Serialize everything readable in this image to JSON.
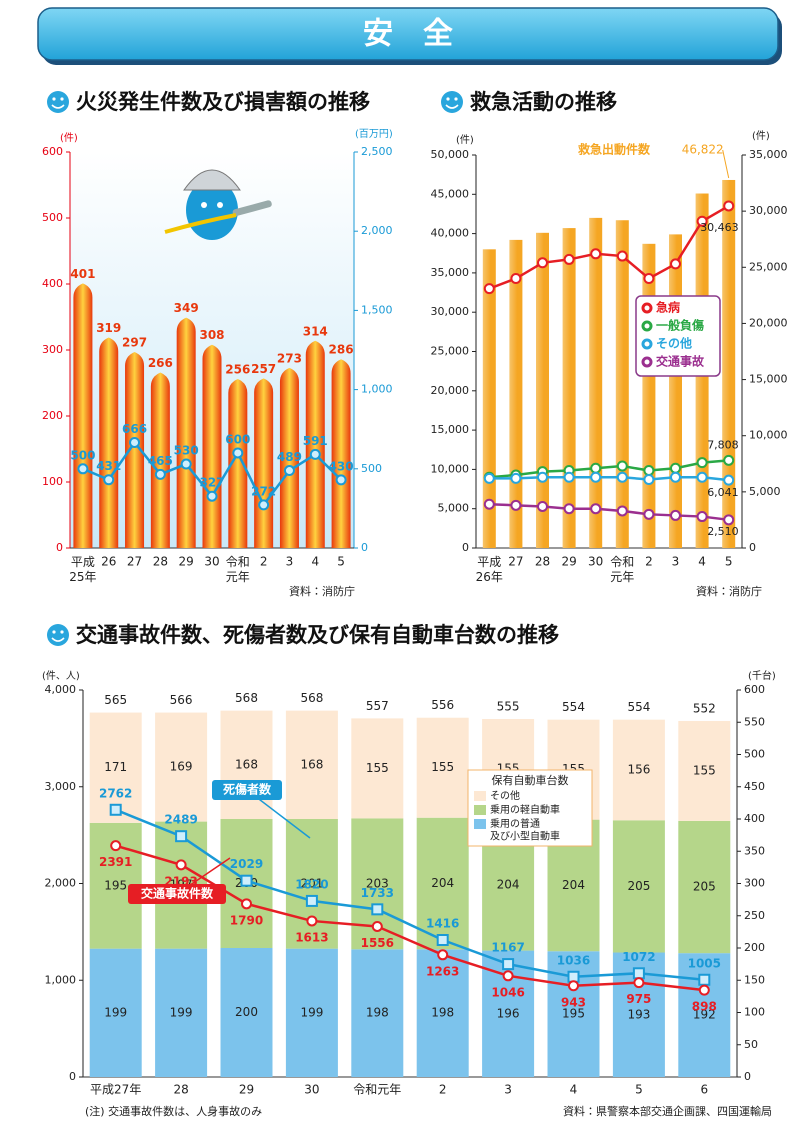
{
  "header": {
    "title": "安　全"
  },
  "chart_data": [
    {
      "type": "combo",
      "title": "火災発生件数及び損害額の推移",
      "ylabel": "(件)",
      "y2label": "(百万円)",
      "source": "資料：消防庁",
      "categories": [
        "平成\n25年",
        "26",
        "27",
        "28",
        "29",
        "30",
        "令和\n元年",
        "2",
        "3",
        "4",
        "5"
      ],
      "series": [
        {
          "type": "bar",
          "color": "#e8380d",
          "values": [
            401,
            319,
            297,
            266,
            349,
            308,
            256,
            257,
            273,
            314,
            286
          ]
        },
        {
          "type": "line",
          "axis": "y2",
          "marker": "circle",
          "color": "#1a9ad6",
          "values": [
            500,
            431,
            666,
            465,
            530,
            327,
            600,
            272,
            489,
            591,
            430
          ]
        }
      ],
      "ylim": [
        0,
        600
      ],
      "yticks": [
        0,
        100,
        200,
        300,
        400,
        500,
        600
      ],
      "y2lim": [
        0,
        2500
      ],
      "y2ticks": [
        0,
        500,
        {
          "value": 1000,
          "label": "1,000"
        },
        {
          "value": 1500,
          "label": "1,500"
        },
        {
          "value": 2000,
          "label": "2,000"
        },
        {
          "value": 2500,
          "label": "2,500"
        }
      ]
    },
    {
      "type": "combo",
      "title": "救急活動の推移",
      "ylabel": "(件)",
      "y2label": "(件)",
      "source": "資料：消防庁",
      "categories": [
        "平成\n26年",
        "27",
        "28",
        "29",
        "30",
        "令和\n元年",
        "2",
        "3",
        "4",
        "5"
      ],
      "series": [
        {
          "type": "bar",
          "name": "救急出動件数",
          "color": "#f5a623",
          "values": [
            38000,
            39200,
            40100,
            40700,
            42000,
            41700,
            38700,
            39900,
            45100,
            46822
          ],
          "value_labels": [
            null,
            null,
            null,
            null,
            null,
            null,
            null,
            null,
            null,
            "46,822"
          ]
        },
        {
          "type": "line",
          "axis": "y2",
          "marker": "circle",
          "name": "急病",
          "color": "#e61e24",
          "values": [
            23100,
            24000,
            25400,
            25700,
            26200,
            26000,
            24000,
            25300,
            29100,
            30463
          ],
          "value_labels": [
            null,
            null,
            null,
            null,
            null,
            null,
            null,
            null,
            null,
            "30,463"
          ]
        },
        {
          "type": "line",
          "axis": "y2",
          "marker": "circle",
          "name": "一般負傷",
          "color": "#2aa845",
          "values": [
            6300,
            6500,
            6800,
            6900,
            7100,
            7300,
            6900,
            7100,
            7600,
            7808
          ],
          "value_labels": [
            null,
            null,
            null,
            null,
            null,
            null,
            null,
            null,
            null,
            "7,808"
          ]
        },
        {
          "type": "line",
          "axis": "y2",
          "marker": "circle",
          "name": "その他",
          "color": "#29a6dd",
          "values": [
            6200,
            6200,
            6300,
            6300,
            6300,
            6300,
            6100,
            6300,
            6300,
            6041
          ],
          "value_labels": [
            null,
            null,
            null,
            null,
            null,
            null,
            null,
            null,
            null,
            "6,041"
          ]
        },
        {
          "type": "line",
          "axis": "y2",
          "marker": "circle",
          "name": "交通事故",
          "color": "#9b2f8f",
          "values": [
            3900,
            3800,
            3700,
            3500,
            3500,
            3300,
            3000,
            2900,
            2800,
            2510
          ],
          "value_labels": [
            null,
            null,
            null,
            null,
            null,
            null,
            null,
            null,
            null,
            "2,510"
          ]
        }
      ],
      "ylim": [
        0,
        50000
      ],
      "yticks": [
        0,
        {
          "value": 5000,
          "label": "5,000"
        },
        {
          "value": 10000,
          "label": "10,000"
        },
        {
          "value": 15000,
          "label": "15,000"
        },
        {
          "value": 20000,
          "label": "20,000"
        },
        {
          "value": 25000,
          "label": "25,000"
        },
        {
          "value": 30000,
          "label": "30,000"
        },
        {
          "value": 35000,
          "label": "35,000"
        },
        {
          "value": 40000,
          "label": "40,000"
        },
        {
          "value": 45000,
          "label": "45,000"
        },
        {
          "value": 50000,
          "label": "50,000"
        }
      ],
      "y2lim": [
        0,
        35000
      ],
      "y2ticks": [
        0,
        {
          "value": 5000,
          "label": "5,000"
        },
        {
          "value": 10000,
          "label": "10,000"
        },
        {
          "value": 15000,
          "label": "15,000"
        },
        {
          "value": 20000,
          "label": "20,000"
        },
        {
          "value": 25000,
          "label": "25,000"
        },
        {
          "value": 30000,
          "label": "30,000"
        },
        {
          "value": 35000,
          "label": "35,000"
        }
      ]
    },
    {
      "type": "combo",
      "title": "交通事故件数、死傷者数及び保有自動車台数の推移",
      "ylabel": "(件、人)",
      "y2label": "(千台)",
      "legend_title": "保有自動車台数",
      "note": "(注) 交通事故件数は、人身事故のみ",
      "source": "資料：県警察本部交通企画課、四国運輸局",
      "categories": [
        "平成27年",
        "28",
        "29",
        "30",
        "令和元年",
        "2",
        "3",
        "4",
        "5",
        "6"
      ],
      "series": [
        {
          "type": "stacked_bar",
          "axis": "y2",
          "name": "乗用の普通\n及び小型自動車",
          "color": "#7cc3ec",
          "values": [
            199,
            199,
            200,
            199,
            198,
            198,
            196,
            195,
            193,
            192
          ]
        },
        {
          "type": "stacked_bar",
          "axis": "y2",
          "name": "乗用の軽自動車",
          "color": "#b5d68a",
          "values": [
            195,
            197,
            200,
            201,
            203,
            204,
            204,
            204,
            205,
            205
          ]
        },
        {
          "type": "stacked_bar",
          "axis": "y2",
          "name": "その他",
          "color": "#fde8d3",
          "values": [
            171,
            169,
            168,
            168,
            155,
            155,
            155,
            155,
            156,
            155
          ]
        },
        {
          "type": "line",
          "marker": "square",
          "name": "死傷者数",
          "color": "#1a9ad6",
          "values": [
            2762,
            2489,
            2029,
            1820,
            1733,
            1416,
            1167,
            1036,
            1072,
            1005
          ]
        },
        {
          "type": "line",
          "marker": "circle",
          "name": "交通事故件数",
          "color": "#e61e24",
          "values": [
            2391,
            2193,
            1790,
            1613,
            1556,
            1263,
            1046,
            943,
            975,
            898
          ]
        }
      ],
      "totals": [
        565,
        566,
        568,
        568,
        557,
        556,
        555,
        554,
        554,
        552
      ],
      "ylim": [
        0,
        4000
      ],
      "yticks": [
        0,
        {
          "value": 1000,
          "label": "1,000"
        },
        {
          "value": 2000,
          "label": "2,000"
        },
        {
          "value": 3000,
          "label": "3,000"
        },
        {
          "value": 4000,
          "label": "4,000"
        }
      ],
      "y2lim": [
        0,
        600
      ],
      "y2ticks": [
        0,
        50,
        100,
        150,
        200,
        250,
        300,
        350,
        400,
        450,
        500,
        550,
        600
      ]
    }
  ]
}
